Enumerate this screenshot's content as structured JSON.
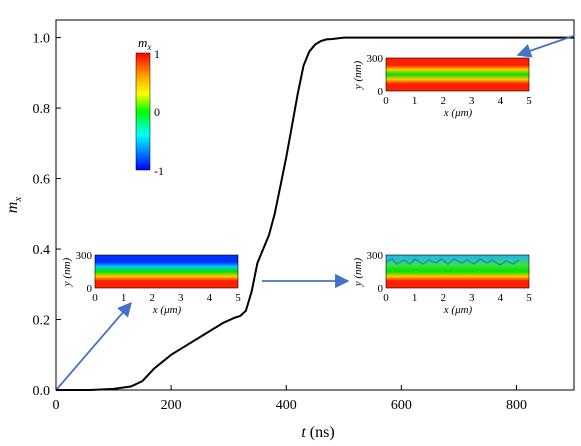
{
  "chart_data": {
    "type": "line",
    "xlabel_var": "t",
    "xlabel_unit": " (ns)",
    "ylabel_var": "m",
    "ylabel_sub": "x",
    "xlim": [
      0,
      900
    ],
    "ylim": [
      0,
      1.05
    ],
    "xticks": [
      "0",
      "200",
      "400",
      "600",
      "800"
    ],
    "xtick_values": [
      0,
      200,
      400,
      600,
      800
    ],
    "yticks": [
      "0.0",
      "0.2",
      "0.4",
      "0.6",
      "0.8",
      "1.0"
    ],
    "ytick_values": [
      0,
      0.2,
      0.4,
      0.6,
      0.8,
      1.0
    ],
    "series": [
      {
        "x": [
          0,
          60,
          100,
          130,
          150,
          170,
          200,
          230,
          260,
          290,
          310,
          320,
          330,
          340,
          350,
          360,
          370,
          380,
          390,
          400,
          410,
          420,
          430,
          440,
          450,
          460,
          470,
          480,
          500,
          520,
          600,
          700,
          800,
          900
        ],
        "y": [
          0.0,
          0.0,
          0.003,
          0.01,
          0.025,
          0.06,
          0.1,
          0.13,
          0.16,
          0.19,
          0.205,
          0.21,
          0.225,
          0.28,
          0.36,
          0.4,
          0.44,
          0.5,
          0.58,
          0.66,
          0.75,
          0.84,
          0.92,
          0.96,
          0.98,
          0.99,
          0.995,
          0.996,
          1.0,
          1.0,
          1.0,
          1.0,
          1.0,
          1.0
        ],
        "color": "#000000"
      }
    ],
    "colorbar": {
      "title_var": "m",
      "title_sub": "x",
      "ticks": [
        "1",
        "0",
        "-1"
      ],
      "colors": [
        "#ff0000",
        "#ffa500",
        "#ffff00",
        "#00ff00",
        "#00ffff",
        "#0000ff"
      ]
    },
    "insets": [
      {
        "id": "inset-top-right",
        "ylabel": "y (nm)",
        "xlabel": "x (μm)",
        "yticks": [
          "300",
          "0"
        ],
        "xticks": [
          "0",
          "1",
          "2",
          "3",
          "4",
          "5"
        ]
      },
      {
        "id": "inset-left",
        "ylabel": "y (nm)",
        "xlabel": "x (μm)",
        "yticks": [
          "300",
          "0"
        ],
        "xticks": [
          "0",
          "1",
          "2",
          "3",
          "4",
          "5"
        ]
      },
      {
        "id": "inset-mid-right",
        "ylabel": "y (nm)",
        "xlabel": "x (μm)",
        "yticks": [
          "300",
          "0"
        ],
        "xticks": [
          "0",
          "1",
          "2",
          "3",
          "4",
          "5"
        ]
      }
    ],
    "arrow_color": "#4472c4"
  }
}
